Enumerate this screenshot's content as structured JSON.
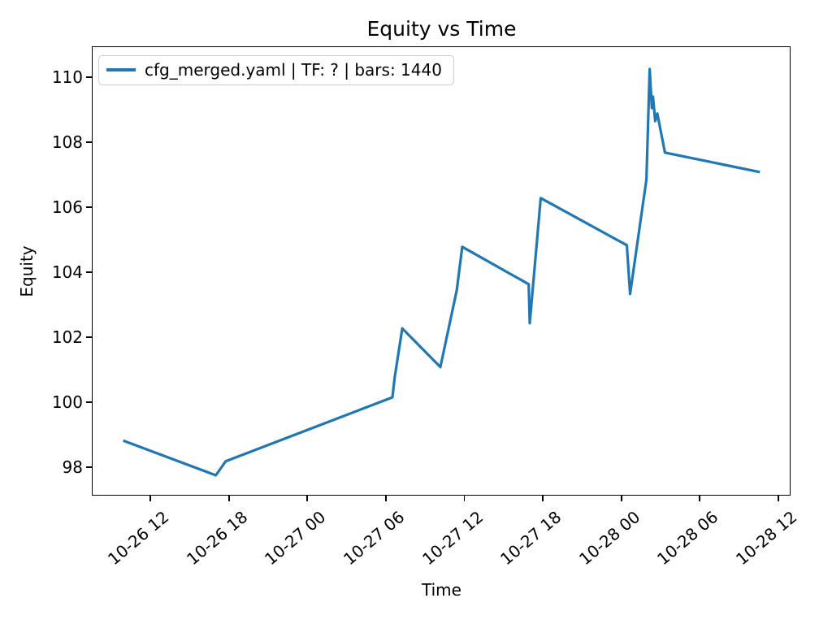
{
  "chart_data": {
    "type": "line",
    "title": "Equity vs Time",
    "xlabel": "Time",
    "ylabel": "Equity",
    "grid": false,
    "legend_position": "upper left",
    "line_color": "#1f77b4",
    "background": "#ffffff",
    "xlim_time": [
      "10-26 07:35",
      "10-28 12:56"
    ],
    "ylim": [
      97.125,
      110.925
    ],
    "xtick_labels": [
      "10-26 12",
      "10-26 18",
      "10-27 00",
      "10-27 06",
      "10-27 12",
      "10-27 18",
      "10-28 00",
      "10-28 06",
      "10-28 12"
    ],
    "ytick_labels": [
      98,
      100,
      102,
      104,
      106,
      108,
      110
    ],
    "series": [
      {
        "name": "cfg_merged.yaml | TF: ? | bars: 1440",
        "points": [
          [
            "10-26 09:55",
            98.82
          ],
          [
            "10-26 17:00",
            97.75
          ],
          [
            "10-26 17:45",
            98.18
          ],
          [
            "10-27 06:30",
            100.15
          ],
          [
            "10-27 06:40",
            100.75
          ],
          [
            "10-27 07:15",
            102.27
          ],
          [
            "10-27 10:10",
            101.08
          ],
          [
            "10-27 11:25",
            103.45
          ],
          [
            "10-27 11:50",
            104.78
          ],
          [
            "10-27 16:55",
            103.63
          ],
          [
            "10-27 17:00",
            102.43
          ],
          [
            "10-27 17:50",
            106.28
          ],
          [
            "10-28 00:25",
            104.83
          ],
          [
            "10-28 00:40",
            103.33
          ],
          [
            "10-28 01:55",
            106.85
          ],
          [
            "10-28 02:10",
            110.25
          ],
          [
            "10-28 02:20",
            109.05
          ],
          [
            "10-28 02:25",
            109.4
          ],
          [
            "10-28 02:35",
            108.65
          ],
          [
            "10-28 02:45",
            108.88
          ],
          [
            "10-28 03:20",
            107.68
          ],
          [
            "10-28 10:35",
            107.08
          ]
        ]
      }
    ]
  }
}
